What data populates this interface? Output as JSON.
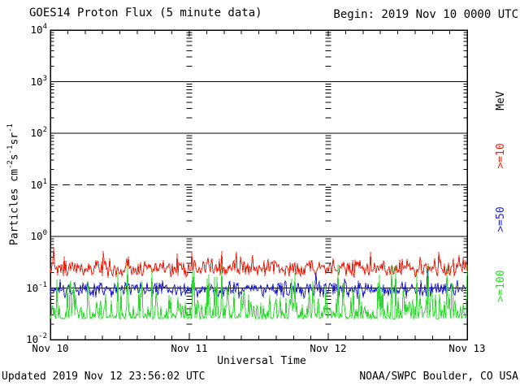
{
  "chart": {
    "title": "GOES14 Proton Flux (5 minute data)",
    "begin_label": "Begin: 2019 Nov 10 0000 UTC",
    "xlabel": "Universal Time",
    "unit_label": "MeV",
    "ylabel_segments": [
      {
        "text": "Particles cm"
      },
      {
        "sup": "-2"
      },
      {
        "text": "s"
      },
      {
        "sup": "-1"
      },
      {
        "text": "sr"
      },
      {
        "sup": "-1"
      }
    ],
    "footer_updated": "Updated 2019 Nov 12 23:56:02 UTC",
    "footer_credit": "NOAA/SWPC Boulder, CO USA",
    "colors": {
      "axis": "#000000",
      "text": "#000000"
    }
  },
  "chart_data": {
    "type": "line",
    "title": "GOES14 Proton Flux (5 minute data)",
    "xlabel": "Universal Time",
    "ylabel": "Particles cm^-2 s^-1 sr^-1",
    "y_scale": "log10",
    "ylim": [
      0.01,
      10000
    ],
    "y_tick_exponents": [
      4,
      3,
      2,
      1,
      0,
      -1,
      -2
    ],
    "x_ticks": [
      "Nov 10",
      "Nov 11",
      "Nov 12",
      "Nov 13"
    ],
    "x_days": 3,
    "minor_x_ticks_per_day": 8,
    "begin": "2019 Nov 10 0000 UTC",
    "hlines": [
      {
        "exp": 3,
        "style": "solid"
      },
      {
        "exp": 2,
        "style": "solid"
      },
      {
        "exp": 1,
        "style": "dashed"
      },
      {
        "exp": 0,
        "style": "solid"
      },
      {
        "exp": -1,
        "style": "solid"
      }
    ],
    "legend_position": "right-rotated",
    "grid": "horizontal-decades-plus-day-tick-columns",
    "series": [
      {
        "name": ">=10",
        "unit": "MeV",
        "color": "#ee2211",
        "summary": {
          "median_flux": 0.24,
          "typical_range": [
            0.14,
            0.45
          ],
          "max_spike": 0.7
        },
        "gen": {
          "kind": "band",
          "base": -0.62,
          "jitter": 0.2,
          "spike_p": 0.12,
          "spike_amp": 0.3,
          "clamp": [
            -0.88,
            -0.17
          ]
        }
      },
      {
        "name": ">=50",
        "unit": "MeV",
        "color": "#2222cc",
        "summary": {
          "median_flux": 0.095,
          "typical_range": [
            0.055,
            0.2
          ],
          "max_spike": 0.3
        },
        "gen": {
          "kind": "band",
          "base": -1.03,
          "jitter": 0.19,
          "spike_p": 0.05,
          "spike_amp": 0.3,
          "clamp": [
            -1.28,
            -0.55
          ]
        }
      },
      {
        "name": ">=100",
        "unit": "MeV",
        "color": "#2fd82f",
        "summary": {
          "median_flux": 0.04,
          "typical_range": [
            0.025,
            0.09
          ],
          "max_spike": 0.28
        },
        "gen": {
          "kind": "floor",
          "floor": -1.6,
          "calm_p": 0.3,
          "exp_scale": 0.25,
          "spike_p": 0.012,
          "spike_amp": 0.45,
          "cap": 1.05
        }
      }
    ],
    "points_per_series": 514,
    "seed": 1911
  }
}
